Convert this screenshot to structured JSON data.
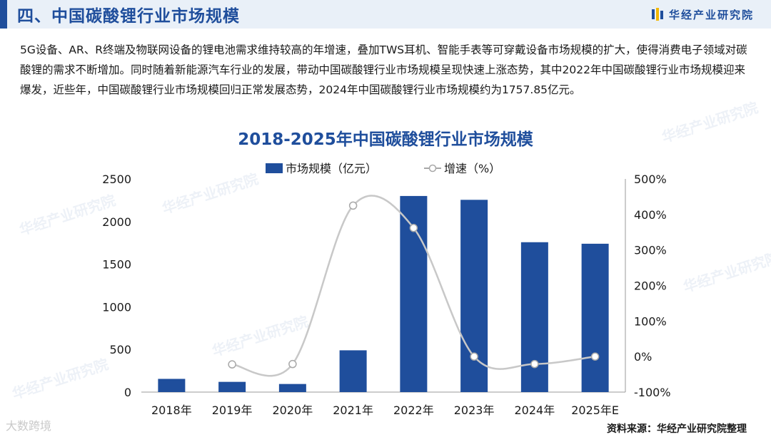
{
  "header": {
    "section_title": "四、中国碳酸锂行业市场规模",
    "brand_name": "华经产业研究院",
    "brand_colors": [
      "#f2b705",
      "#1f4e9c"
    ]
  },
  "intro_text": "5G设备、AR、R终端及物联网设备的锂电池需求维持较高的年增速，叠加TWS耳机、智能手表等可穿戴设备市场规模的扩大，使得消费电子领域对碳酸锂的需求不断增加。同时随着新能源汽车行业的发展，带动中国碳酸锂行业市场规模呈现快速上涨态势，其中2022年中国碳酸锂行业市场规模迎来爆发，近些年，中国碳酸锂行业市场规模回归正常发展态势，2024年中国碳酸锂行业市场规模约为1757.85亿元。",
  "watermark": "华经产业研究院",
  "corner_watermark": "大数跨境",
  "source_text": "资料来源：华经产业研究院整理",
  "chart_data": {
    "type": "bar",
    "title": "2018-2025年中国碳酸锂行业市场规模",
    "categories": [
      "2018年",
      "2019年",
      "2020年",
      "2021年",
      "2022年",
      "2023年",
      "2024年",
      "2025年E"
    ],
    "series": [
      {
        "name": "市场规模（亿元）",
        "type": "bar",
        "axis": "left",
        "values": [
          155,
          120,
          95,
          490,
          2300,
          2255,
          1757.85,
          1740
        ],
        "color": "#1f4e9c"
      },
      {
        "name": "增速（%）",
        "type": "line",
        "axis": "right",
        "smooth": true,
        "values": [
          null,
          -22,
          -21,
          425,
          362,
          0,
          -21,
          0
        ],
        "color": "#c8c8c8"
      }
    ],
    "y_left": {
      "min": 0,
      "max": 2500,
      "ticks": [
        0,
        500,
        1000,
        1500,
        2000,
        2500
      ]
    },
    "y_right": {
      "min": -100,
      "max": 500,
      "ticks": [
        "-100%",
        "0%",
        "100%",
        "200%",
        "300%",
        "400%",
        "500%"
      ]
    },
    "legend_position": "top-center",
    "grid": false
  }
}
